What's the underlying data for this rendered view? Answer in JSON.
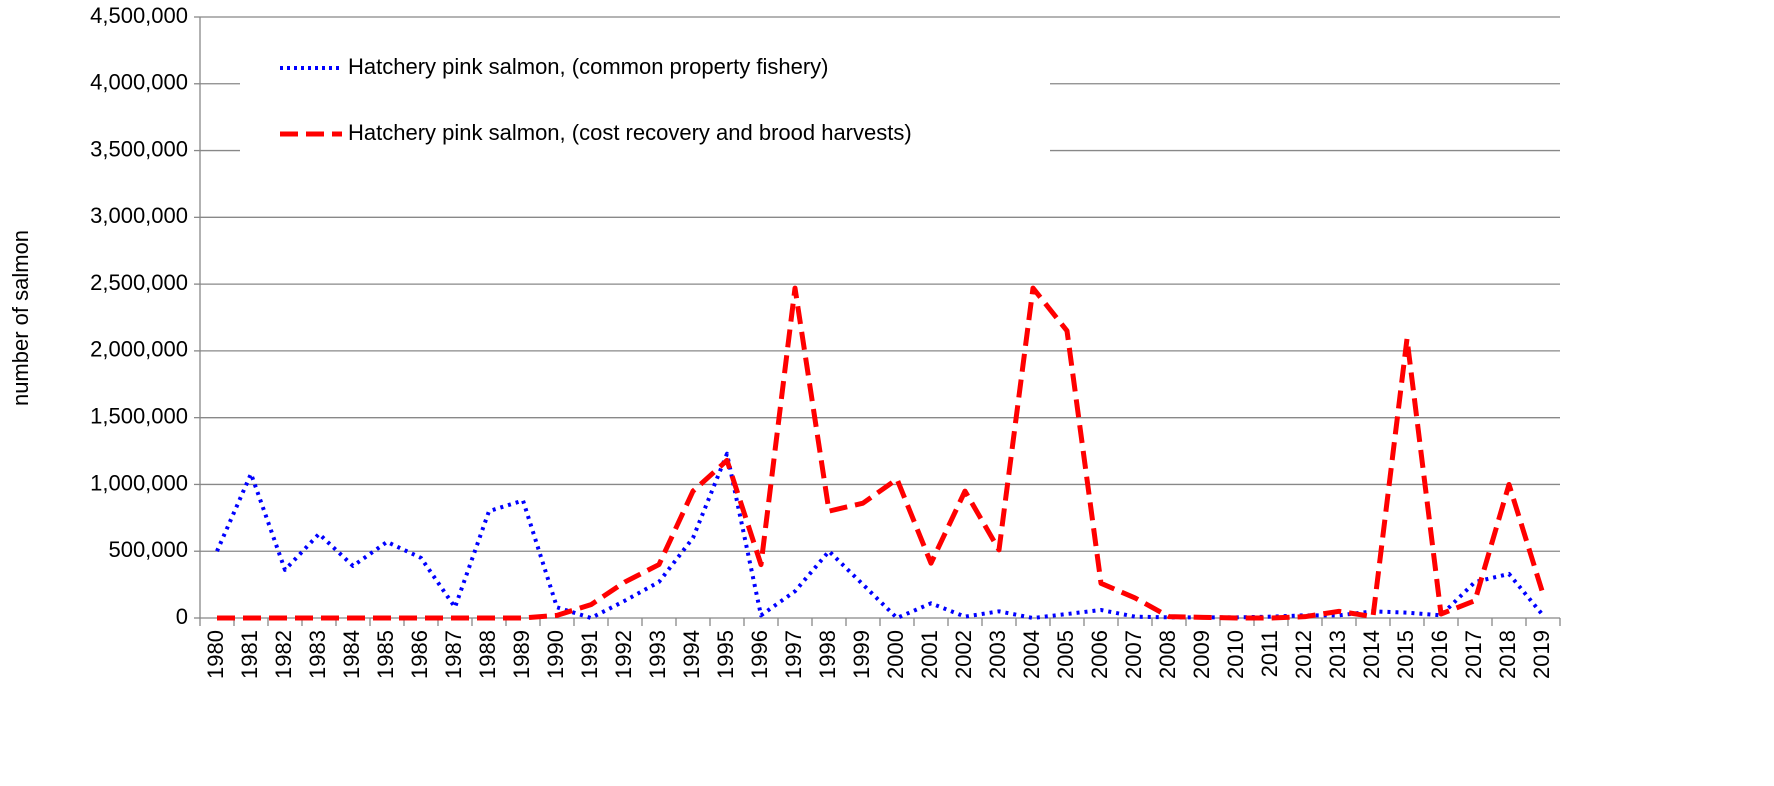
{
  "chart_data": {
    "type": "line",
    "y_label": "number of salmon",
    "categories": [
      "1980",
      "1981",
      "1982",
      "1983",
      "1984",
      "1985",
      "1986",
      "1987",
      "1988",
      "1989",
      "1990",
      "1991",
      "1992",
      "1993",
      "1994",
      "1995",
      "1996",
      "1997",
      "1998",
      "1999",
      "2000",
      "2001",
      "2002",
      "2003",
      "2004",
      "2005",
      "2006",
      "2007",
      "2008",
      "2009",
      "2010",
      "2011",
      "2012",
      "2013",
      "2014",
      "2015",
      "2016",
      "2017",
      "2018",
      "2019"
    ],
    "series": [
      {
        "name": "Hatchery pink salmon, (common property fishery)",
        "color": "#0000ff",
        "dash": "dotted",
        "values": [
          500000,
          1080000,
          360000,
          630000,
          390000,
          570000,
          450000,
          80000,
          800000,
          880000,
          80000,
          0,
          130000,
          270000,
          600000,
          1230000,
          20000,
          200000,
          500000,
          250000,
          0,
          110000,
          10000,
          50000,
          0,
          30000,
          60000,
          10000,
          5000,
          5000,
          5000,
          10000,
          20000,
          20000,
          50000,
          40000,
          20000,
          270000,
          330000,
          20000
        ]
      },
      {
        "name": "Hatchery pink salmon, (cost recovery and brood harvests)",
        "color": "#ff0000",
        "dash": "dashed",
        "values": [
          0,
          0,
          0,
          0,
          0,
          0,
          0,
          0,
          0,
          0,
          20000,
          100000,
          270000,
          400000,
          950000,
          1180000,
          400000,
          2470000,
          800000,
          860000,
          1040000,
          410000,
          950000,
          510000,
          2470000,
          2150000,
          260000,
          150000,
          10000,
          5000,
          0,
          0,
          10000,
          50000,
          10000,
          2090000,
          30000,
          130000,
          1000000,
          180000
        ]
      }
    ],
    "ylim": [
      0,
      4500000
    ],
    "yticks": [
      0,
      {
        "value": 500000,
        "label": "500,000"
      },
      {
        "value": 1000000,
        "label": "1,000,000"
      },
      {
        "value": 1500000,
        "label": "1,500,000"
      },
      {
        "value": 2000000,
        "label": "2,000,000"
      },
      {
        "value": 2500000,
        "label": "2,500,000"
      },
      {
        "value": 3000000,
        "label": "3,000,000"
      },
      {
        "value": 3500000,
        "label": "3,500,000"
      },
      {
        "value": 4000000,
        "label": "4,000,000"
      },
      {
        "value": 4500000,
        "label": "4,500,000"
      }
    ],
    "grid": true,
    "legend": "top-left"
  }
}
